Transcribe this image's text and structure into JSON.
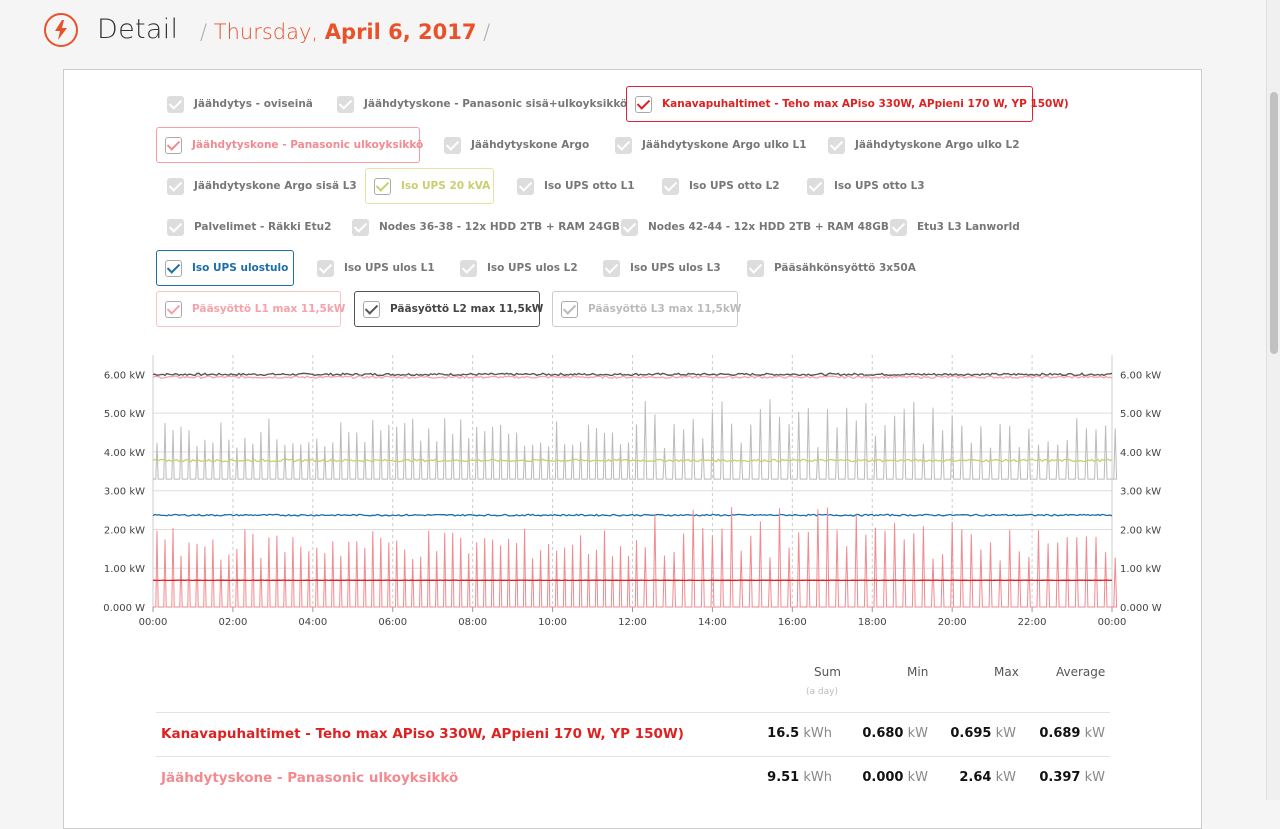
{
  "header": {
    "title": "Detail",
    "separator": "/",
    "day": "Thursday,",
    "date": "April 6, 2017",
    "accent_color": "#e8512a",
    "icon": "lightning-icon"
  },
  "toggles": [
    {
      "label": "Jäähdytys - oviseinä",
      "checked": false
    },
    {
      "label": "Jäähdytyskone - Panasonic sisä+ulkoyksikkö",
      "checked": false
    },
    {
      "label": "Kanavapuhaltimet - Teho max APiso 330W, APpieni 170 W, YP 150W)",
      "checked": true,
      "color": "#dd2222"
    },
    {
      "label": "Jäähdytyskone - Panasonic ulkoyksikkö",
      "checked": true,
      "color": "#f28a90"
    },
    {
      "label": "Jäähdytyskone Argo",
      "checked": false
    },
    {
      "label": "Jäähdytyskone Argo ulko L1",
      "checked": false
    },
    {
      "label": "Jäähdytyskone Argo ulko L2",
      "checked": false
    },
    {
      "label": "Jäähdytyskone Argo sisä L3",
      "checked": false
    },
    {
      "label": "Iso UPS 20 kVA",
      "checked": true,
      "color": "#c9cf6e"
    },
    {
      "label": "Iso UPS otto L1",
      "checked": false
    },
    {
      "label": "Iso UPS otto L2",
      "checked": false
    },
    {
      "label": "Iso UPS otto L3",
      "checked": false
    },
    {
      "label": "Palvelimet - Räkki Etu2",
      "checked": false
    },
    {
      "label": "Nodes 36-38 - 12x HDD 2TB + RAM 24GB",
      "checked": false
    },
    {
      "label": "Nodes 42-44 - 12x HDD 2TB + RAM 48GB",
      "checked": false
    },
    {
      "label": "Etu3 L3 Lanworld",
      "checked": false
    },
    {
      "label": "Iso UPS ulostulo",
      "checked": true,
      "color": "#1d6ea5"
    },
    {
      "label": "Iso UPS ulos L1",
      "checked": false
    },
    {
      "label": "Iso UPS ulos L2",
      "checked": false
    },
    {
      "label": "Iso UPS ulos L3",
      "checked": false
    },
    {
      "label": "Pääsähkönsyöttö 3x50A",
      "checked": false
    },
    {
      "label": "Pääsyöttö L1 max 11,5kW",
      "checked": true,
      "color": "#f5a2a8"
    },
    {
      "label": "Pääsyöttö L2 max 11,5kW",
      "checked": true,
      "color": "#555555"
    },
    {
      "label": "Pääsyöttö L3 max 11,5kW",
      "checked": true,
      "color": "#bbbbbb"
    }
  ],
  "chart_data": {
    "type": "line",
    "x_ticks": [
      "00:00",
      "02:00",
      "04:00",
      "06:00",
      "08:00",
      "10:00",
      "12:00",
      "14:00",
      "16:00",
      "18:00",
      "20:00",
      "22:00",
      "00:00"
    ],
    "y_ticks": [
      "0.000 W",
      "1.00 kW",
      "2.00 kW",
      "3.00 kW",
      "4.00 kW",
      "5.00 kW",
      "6.00 kW"
    ],
    "ylim": [
      0,
      6.5
    ],
    "xlim_hours": [
      0,
      24
    ],
    "grid": true,
    "series": [
      {
        "name": "Pääsyöttö L2 max 11,5kW",
        "color": "#555555",
        "kind": "flat",
        "level": 6.0,
        "noise": 0.03
      },
      {
        "name": "Pääsyöttö L1 max 11,5kW",
        "color": "#f5a2a8",
        "kind": "flat",
        "level": 5.93,
        "noise": 0.03
      },
      {
        "name": "Pääsyöttö L3 max 11,5kW",
        "color": "#bbbbbb",
        "kind": "spikes",
        "base": 3.3,
        "peak_min": 4.1,
        "peak_max": 5.4
      },
      {
        "name": "Iso UPS 20 kVA",
        "color": "#c9cf6e",
        "kind": "flat",
        "level": 3.78,
        "noise": 0.03
      },
      {
        "name": "Iso UPS ulostulo",
        "color": "#1d6ea5",
        "kind": "flat",
        "level": 2.37,
        "noise": 0.02
      },
      {
        "name": "Jäähdytyskone - Panasonic ulkoyksikkö",
        "color": "#f28a90",
        "kind": "spikes",
        "base": 0.0,
        "peak_min": 1.2,
        "peak_max": 2.6
      },
      {
        "name": "Kanavapuhaltimet - Teho max APiso 330W, APpieni 170 W, YP 150W)",
        "color": "#dd2222",
        "kind": "flat",
        "level": 0.689,
        "noise": 0.004
      }
    ]
  },
  "table": {
    "headers": {
      "sum": "Sum",
      "sum_sub": "(a day)",
      "min": "Min",
      "max": "Max",
      "avg": "Average"
    },
    "rows": [
      {
        "label": "Kanavapuhaltimet - Teho max APiso 330W, APpieni 170 W, YP 150W)",
        "color": "#dd2222",
        "sum": "16.5",
        "sum_unit": "kWh",
        "min": "0.680",
        "min_unit": "kW",
        "max": "0.695",
        "max_unit": "kW",
        "avg": "0.689",
        "avg_unit": "kW"
      },
      {
        "label": "Jäähdytyskone - Panasonic ulkoyksikkö",
        "color": "#f28a90",
        "sum": "9.51",
        "sum_unit": "kWh",
        "min": "0.000",
        "min_unit": "kW",
        "max": "2.64",
        "max_unit": "kW",
        "avg": "0.397",
        "avg_unit": "kW"
      }
    ]
  }
}
